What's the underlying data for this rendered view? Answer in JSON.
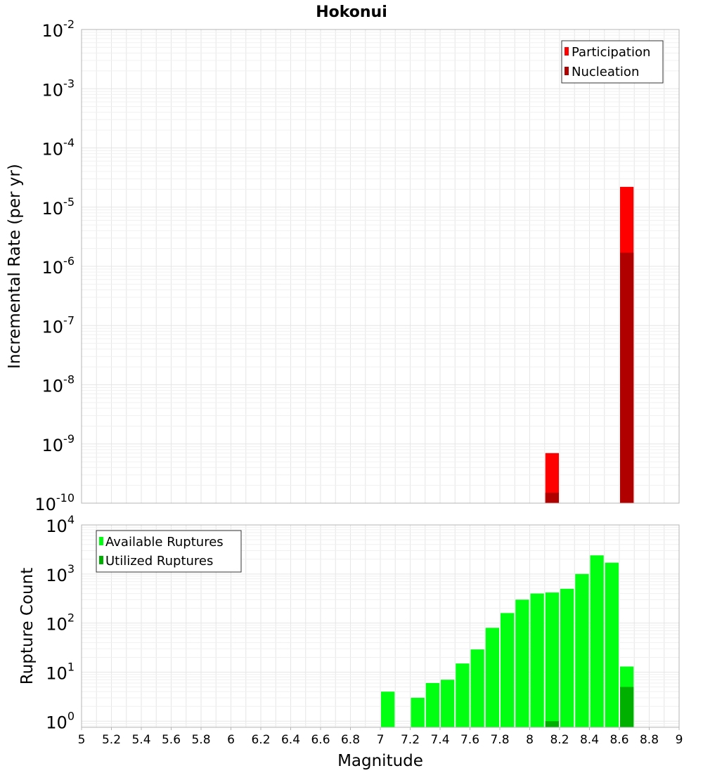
{
  "chart_data": [
    {
      "type": "bar",
      "title": "Hokonui",
      "ylabel": "Incremental Rate (per yr)",
      "xlabel": "",
      "xlim": [
        5,
        9
      ],
      "ylim": [
        1e-10,
        0.01
      ],
      "yscale": "log",
      "y_ticks": [
        {
          "base": "10",
          "exp": "-10"
        },
        {
          "base": "10",
          "exp": "-9"
        },
        {
          "base": "10",
          "exp": "-8"
        },
        {
          "base": "10",
          "exp": "-7"
        },
        {
          "base": "10",
          "exp": "-6"
        },
        {
          "base": "10",
          "exp": "-5"
        },
        {
          "base": "10",
          "exp": "-4"
        },
        {
          "base": "10",
          "exp": "-3"
        },
        {
          "base": "10",
          "exp": "-2"
        }
      ],
      "bin_width": 0.1,
      "legend_position": "top-right",
      "grid": true,
      "series": [
        {
          "name": "Participation",
          "color": "#ff0000",
          "x": [
            8.15,
            8.65
          ],
          "values": [
            7e-10,
            2.2e-05
          ]
        },
        {
          "name": "Nucleation",
          "color": "#b00000",
          "x": [
            8.15,
            8.65
          ],
          "values": [
            1.5e-10,
            1.7e-06
          ]
        }
      ]
    },
    {
      "type": "bar",
      "title": "",
      "ylabel": "Rupture Count",
      "xlabel": "Magnitude",
      "xlim": [
        5,
        9
      ],
      "ylim": [
        0.75,
        10000
      ],
      "yscale": "log",
      "y_ticks": [
        {
          "base": "10",
          "exp": "0"
        },
        {
          "base": "10",
          "exp": "1"
        },
        {
          "base": "10",
          "exp": "2"
        },
        {
          "base": "10",
          "exp": "3"
        },
        {
          "base": "10",
          "exp": "4"
        }
      ],
      "x_tick_labels": [
        "5",
        "5.2",
        "5.4",
        "5.6",
        "5.8",
        "6",
        "6.2",
        "6.4",
        "6.6",
        "6.8",
        "7",
        "7.2",
        "7.4",
        "7.6",
        "7.8",
        "8",
        "8.2",
        "8.4",
        "8.6",
        "8.8",
        "9"
      ],
      "bin_width": 0.1,
      "legend_position": "top-left",
      "grid": true,
      "series": [
        {
          "name": "Available Ruptures",
          "color": "#00ff10",
          "x": [
            7.05,
            7.25,
            7.35,
            7.45,
            7.55,
            7.65,
            7.75,
            7.85,
            7.95,
            8.05,
            8.15,
            8.25,
            8.35,
            8.45,
            8.55,
            8.65
          ],
          "values": [
            4,
            3,
            6,
            7,
            15,
            29,
            80,
            160,
            300,
            400,
            420,
            500,
            1000,
            2400,
            1700,
            13
          ]
        },
        {
          "name": "Utilized Ruptures",
          "color": "#00b000",
          "x": [
            8.15,
            8.65
          ],
          "values": [
            1,
            5
          ]
        }
      ]
    }
  ]
}
